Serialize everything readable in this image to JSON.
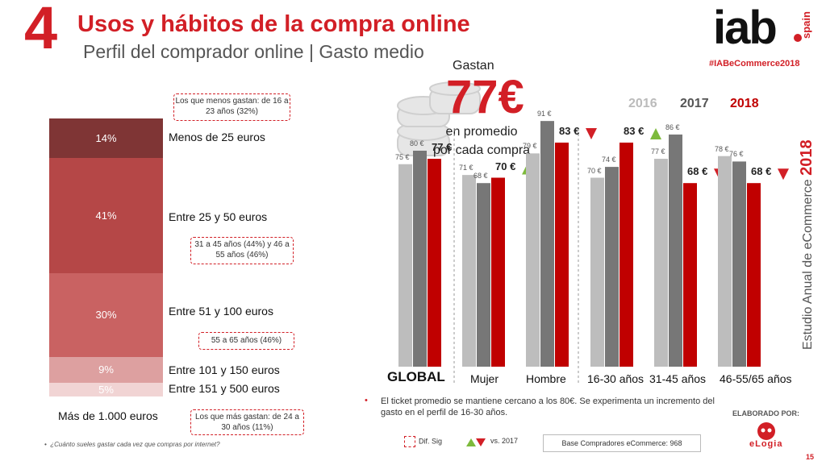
{
  "header": {
    "section_number": "4",
    "title": "Usos y hábitos de la compra online",
    "subtitle": "Perfil del comprador online | Gasto medio",
    "logo_text": "iab",
    "logo_subtext": "spain",
    "hashtag": "#IABeCommerce2018"
  },
  "side_text": {
    "label": "Estudio Anual de eCommerce",
    "year": "2018"
  },
  "stack": {
    "segments": [
      {
        "pct_label": "14%",
        "range": "Menos de 25 euros",
        "value": 14,
        "color": "#7f3535"
      },
      {
        "pct_label": "41%",
        "range": "Entre 25 y 50 euros",
        "value": 41,
        "color": "#b54747"
      },
      {
        "pct_label": "30%",
        "range": "Entre 51 y 100 euros",
        "value": 30,
        "color": "#c96262"
      },
      {
        "pct_label": "9%",
        "range": "Entre 101 y 150 euros",
        "value": 9,
        "color": "#dda0a0"
      },
      {
        "pct_label": "5%",
        "range": "Entre 151 y 500 euros",
        "value": 5,
        "color": "#f1d4d4"
      }
    ],
    "extra_label": "Más de 1.000 euros",
    "notes": {
      "least": "Los que menos gastan: de 16 a 23 años (32%)",
      "mid": "31 a 45 años (44%) y 46 a 55 años (46%)",
      "ages_55": "55 a 65 años (46%)",
      "most": "Los que más gastan: de 24 a 30 años (11%)"
    }
  },
  "average": {
    "gastan": "Gastan",
    "value": "77€",
    "line1": "en promedio",
    "line2": "por cada compra"
  },
  "years": [
    {
      "label": "2016",
      "color": "#bdbdbd"
    },
    {
      "label": "2017",
      "color": "#777777"
    },
    {
      "label": "2018",
      "color": "#c00000"
    }
  ],
  "chart_data": {
    "type": "bar",
    "categories": [
      "GLOBAL",
      "Mujer",
      "Hombre",
      "16-30 años",
      "31-45 años",
      "46-55/65 años"
    ],
    "series": [
      {
        "name": "2016",
        "values": [
          75,
          71,
          79,
          70,
          77,
          78
        ],
        "labels": [
          "75 €",
          "71 €",
          "79 €",
          "70 €",
          "77 €",
          "78 €"
        ]
      },
      {
        "name": "2017",
        "values": [
          80,
          68,
          91,
          74,
          86,
          76
        ],
        "labels": [
          "80 €",
          "68 €",
          "91 €",
          "74 €",
          "86 €",
          "76 €"
        ]
      },
      {
        "name": "2018",
        "values": [
          77,
          70,
          83,
          83,
          68,
          68
        ],
        "labels": [
          "77 €",
          "70 €",
          "83 €",
          "83 €",
          "68 €",
          "68 €"
        ]
      }
    ],
    "trend": [
      "none",
      "up",
      "down",
      "up",
      "down",
      "down"
    ],
    "up_color": "#7dba3c",
    "down_color": "#d21f26"
  },
  "bullet_note": "El ticket promedio se mantiene cercano a los 80€. Se experimenta un incremento del gasto en el perfil de 16-30 años.",
  "footer": {
    "elaborado": "ELABORADO POR:",
    "elaborado_brand": "eLogia",
    "question": "¿Cuánto sueles gastar cada vez que compras por internet?",
    "legend_sig": "Dif. Sig",
    "legend_vs": "vs. 2017",
    "base": "Base Compradores eCommerce: 968",
    "page": "15"
  }
}
